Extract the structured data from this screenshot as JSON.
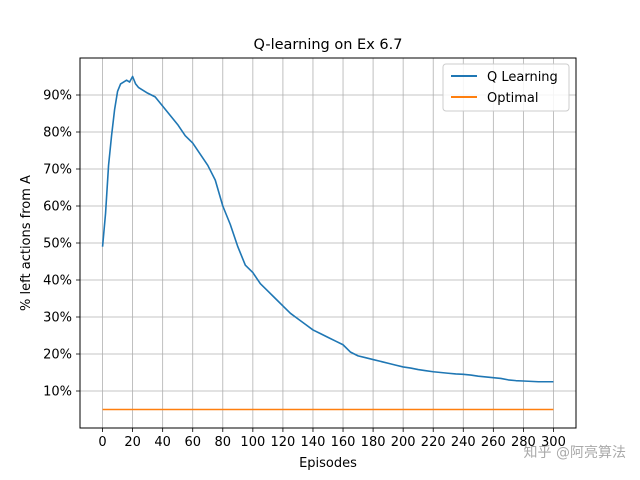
{
  "chart_data": {
    "type": "line",
    "title": "Q-learning on Ex 6.7",
    "xlabel": "Episodes",
    "ylabel": "% left actions from A",
    "xlim": [
      -15,
      315
    ],
    "ylim": [
      0.0,
      1.0
    ],
    "x_ticks": [
      0,
      20,
      40,
      60,
      80,
      100,
      120,
      140,
      160,
      180,
      200,
      220,
      240,
      260,
      280,
      300
    ],
    "x_tick_labels": [
      "0",
      "20",
      "40",
      "60",
      "80",
      "100",
      "120",
      "140",
      "160",
      "180",
      "200",
      "220",
      "240",
      "260",
      "280",
      "300"
    ],
    "y_ticks": [
      0.1,
      0.2,
      0.3,
      0.4,
      0.5,
      0.6,
      0.7,
      0.8,
      0.9
    ],
    "y_tick_labels": [
      "10%",
      "20%",
      "30%",
      "40%",
      "50%",
      "60%",
      "70%",
      "80%",
      "90%"
    ],
    "grid": true,
    "legend_position": "top-right",
    "series": [
      {
        "name": "Q Learning",
        "color": "#1f77b4",
        "x": [
          0,
          2,
          4,
          6,
          8,
          10,
          12,
          14,
          16,
          18,
          20,
          22,
          24,
          26,
          28,
          30,
          35,
          40,
          45,
          50,
          55,
          60,
          65,
          70,
          75,
          80,
          85,
          90,
          95,
          100,
          105,
          110,
          115,
          120,
          125,
          130,
          135,
          140,
          145,
          150,
          155,
          160,
          165,
          170,
          175,
          180,
          185,
          190,
          195,
          200,
          205,
          210,
          215,
          220,
          225,
          230,
          235,
          240,
          245,
          250,
          255,
          260,
          265,
          270,
          275,
          280,
          285,
          290,
          295,
          300
        ],
        "values": [
          0.49,
          0.58,
          0.71,
          0.79,
          0.86,
          0.91,
          0.93,
          0.935,
          0.94,
          0.935,
          0.95,
          0.93,
          0.92,
          0.915,
          0.91,
          0.905,
          0.895,
          0.87,
          0.845,
          0.82,
          0.79,
          0.77,
          0.74,
          0.71,
          0.67,
          0.6,
          0.55,
          0.49,
          0.44,
          0.42,
          0.39,
          0.37,
          0.35,
          0.33,
          0.31,
          0.295,
          0.28,
          0.265,
          0.255,
          0.245,
          0.235,
          0.225,
          0.205,
          0.195,
          0.19,
          0.185,
          0.18,
          0.175,
          0.17,
          0.165,
          0.162,
          0.158,
          0.155,
          0.152,
          0.15,
          0.148,
          0.146,
          0.145,
          0.143,
          0.14,
          0.138,
          0.136,
          0.134,
          0.13,
          0.128,
          0.127,
          0.126,
          0.125,
          0.125,
          0.125
        ]
      },
      {
        "name": "Optimal",
        "color": "#ff7f0e",
        "x": [
          0,
          300
        ],
        "values": [
          0.05,
          0.05
        ]
      }
    ]
  },
  "watermark": "知乎 @阿亮算法"
}
